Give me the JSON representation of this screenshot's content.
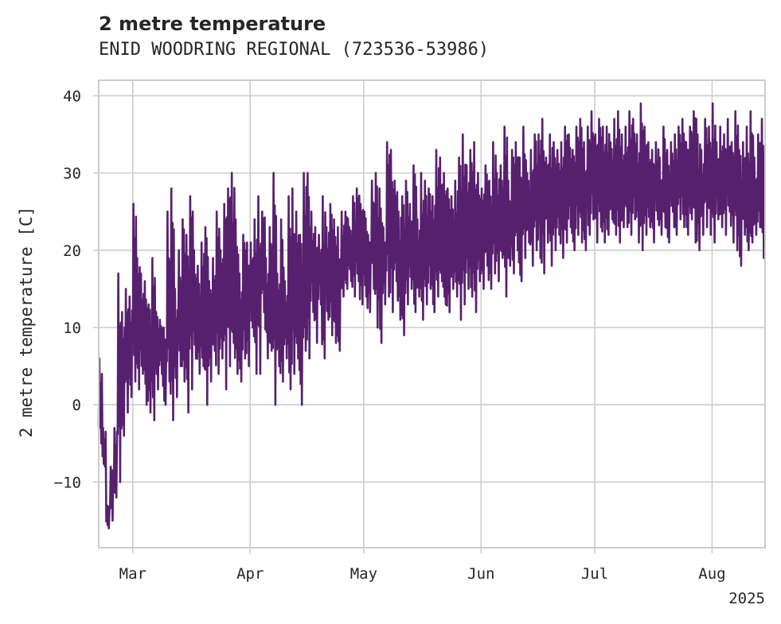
{
  "title": "2 metre temperature",
  "subtitle": "ENID WOODRING REGIONAL (723536-53986)",
  "colors": {
    "line": "#57206e",
    "grid": "#cccccc",
    "frame": "#cccccc",
    "text": "#262626"
  },
  "chart_data": {
    "type": "line",
    "title": "2 metre temperature",
    "subtitle": "ENID WOODRING REGIONAL (723536-53986)",
    "xlabel": "",
    "ylabel": "2 metre temperature [C]",
    "xlim": [
      "2025-02-20",
      "2025-08-15"
    ],
    "ylim": [
      -18.5,
      42
    ],
    "grid": true,
    "legend": "none",
    "x_ticks": [
      {
        "date": "2025-03-01",
        "label": "Mar"
      },
      {
        "date": "2025-04-01",
        "label": "Apr"
      },
      {
        "date": "2025-05-01",
        "label": "May"
      },
      {
        "date": "2025-06-01",
        "label": "Jun"
      },
      {
        "date": "2025-07-01",
        "label": "Jul"
      },
      {
        "date": "2025-08-01",
        "label": "Aug"
      }
    ],
    "x_offset_label": "2025",
    "y_ticks": [
      -10,
      0,
      10,
      20,
      30,
      40
    ],
    "series": [
      {
        "x": [
          "2025-02-20",
          "2025-02-21",
          "2025-02-22",
          "2025-02-23",
          "2025-02-24",
          "2025-02-25",
          "2025-02-26",
          "2025-02-27",
          "2025-02-28",
          "2025-03-01",
          "2025-03-02",
          "2025-03-03",
          "2025-03-04",
          "2025-03-05",
          "2025-03-06",
          "2025-03-07",
          "2025-03-08",
          "2025-03-09",
          "2025-03-10",
          "2025-03-11",
          "2025-03-12",
          "2025-03-13",
          "2025-03-14",
          "2025-03-15",
          "2025-03-16",
          "2025-03-17",
          "2025-03-18",
          "2025-03-19",
          "2025-03-20",
          "2025-03-21",
          "2025-03-22",
          "2025-03-23",
          "2025-03-24",
          "2025-03-25",
          "2025-03-26",
          "2025-03-27",
          "2025-03-28",
          "2025-03-29",
          "2025-03-30",
          "2025-03-31",
          "2025-04-01",
          "2025-04-02",
          "2025-04-03",
          "2025-04-04",
          "2025-04-05",
          "2025-04-06",
          "2025-04-07",
          "2025-04-08",
          "2025-04-09",
          "2025-04-10",
          "2025-04-11",
          "2025-04-12",
          "2025-04-13",
          "2025-04-14",
          "2025-04-15",
          "2025-04-16",
          "2025-04-17",
          "2025-04-18",
          "2025-04-19",
          "2025-04-20",
          "2025-04-21",
          "2025-04-22",
          "2025-04-23",
          "2025-04-24",
          "2025-04-25",
          "2025-04-26",
          "2025-04-27",
          "2025-04-28",
          "2025-04-29",
          "2025-04-30",
          "2025-05-01",
          "2025-05-02",
          "2025-05-03",
          "2025-05-04",
          "2025-05-05",
          "2025-05-06",
          "2025-05-07",
          "2025-05-08",
          "2025-05-09",
          "2025-05-10",
          "2025-05-11",
          "2025-05-12",
          "2025-05-13",
          "2025-05-14",
          "2025-05-15",
          "2025-05-16",
          "2025-05-17",
          "2025-05-18",
          "2025-05-19",
          "2025-05-20",
          "2025-05-21",
          "2025-05-22",
          "2025-05-23",
          "2025-05-24",
          "2025-05-25",
          "2025-05-26",
          "2025-05-27",
          "2025-05-28",
          "2025-05-29",
          "2025-05-30",
          "2025-05-31",
          "2025-06-01",
          "2025-06-02",
          "2025-06-03",
          "2025-06-04",
          "2025-06-05",
          "2025-06-06",
          "2025-06-07",
          "2025-06-08",
          "2025-06-09",
          "2025-06-10",
          "2025-06-11",
          "2025-06-12",
          "2025-06-13",
          "2025-06-14",
          "2025-06-15",
          "2025-06-16",
          "2025-06-17",
          "2025-06-18",
          "2025-06-19",
          "2025-06-20",
          "2025-06-21",
          "2025-06-22",
          "2025-06-23",
          "2025-06-24",
          "2025-06-25",
          "2025-06-26",
          "2025-06-27",
          "2025-06-28",
          "2025-06-29",
          "2025-06-30",
          "2025-07-01",
          "2025-07-02",
          "2025-07-03",
          "2025-07-04",
          "2025-07-05",
          "2025-07-06",
          "2025-07-07",
          "2025-07-08",
          "2025-07-09",
          "2025-07-10",
          "2025-07-11",
          "2025-07-12",
          "2025-07-13",
          "2025-07-14",
          "2025-07-15",
          "2025-07-16",
          "2025-07-17",
          "2025-07-18",
          "2025-07-19",
          "2025-07-20",
          "2025-07-21",
          "2025-07-22",
          "2025-07-23",
          "2025-07-24",
          "2025-07-25",
          "2025-07-26",
          "2025-07-27",
          "2025-07-28",
          "2025-07-29",
          "2025-07-30",
          "2025-07-31",
          "2025-08-01",
          "2025-08-02",
          "2025-08-03",
          "2025-08-04",
          "2025-08-05",
          "2025-08-06",
          "2025-08-07",
          "2025-08-08",
          "2025-08-09",
          "2025-08-10",
          "2025-08-11",
          "2025-08-12",
          "2025-08-13",
          "2025-08-14"
        ],
        "min": [
          -5,
          -8,
          -16,
          -15,
          -12,
          -10,
          -4,
          -1,
          1,
          3,
          2,
          4,
          0,
          -1,
          -2,
          2,
          4,
          0,
          3,
          -2,
          1,
          5,
          3,
          -1,
          2,
          6,
          4,
          5,
          0,
          3,
          7,
          4,
          6,
          2,
          5,
          8,
          4,
          3,
          6,
          5,
          10,
          4,
          4,
          12,
          6,
          7,
          0,
          5,
          3,
          6,
          2,
          4,
          6,
          0,
          7,
          6,
          12,
          8,
          13,
          6,
          11,
          9,
          8,
          7,
          14,
          15,
          16,
          14,
          16,
          13,
          14,
          12,
          15,
          10,
          8,
          13,
          14,
          12,
          16,
          11,
          9,
          13,
          15,
          12,
          14,
          11,
          13,
          15,
          12,
          14,
          16,
          13,
          12,
          15,
          14,
          11,
          13,
          15,
          14,
          12,
          16,
          15,
          18,
          15,
          17,
          16,
          19,
          14,
          18,
          17,
          20,
          16,
          19,
          21,
          18,
          20,
          19,
          17,
          21,
          18,
          20,
          22,
          19,
          21,
          23,
          20,
          22,
          21,
          20,
          22,
          24,
          21,
          23,
          21,
          22,
          24,
          22,
          21,
          23,
          23,
          22,
          24,
          21,
          20,
          22,
          23,
          21,
          24,
          22,
          23,
          21,
          25,
          22,
          24,
          23,
          22,
          24,
          21,
          20,
          22,
          23,
          22,
          21,
          24,
          23,
          22,
          25,
          21,
          20,
          18,
          22,
          20,
          21,
          22,
          23,
          19,
          20,
          21
        ],
        "max": [
          6,
          -3,
          -13,
          -8,
          -3,
          17,
          12,
          15,
          14,
          26,
          19,
          17,
          16,
          13,
          19,
          12,
          11,
          10,
          25,
          28,
          15,
          20,
          24,
          22,
          27,
          20,
          18,
          21,
          23,
          16,
          19,
          25,
          20,
          26,
          28,
          30,
          24,
          17,
          22,
          21,
          21,
          24,
          27,
          25,
          19,
          23,
          30,
          17,
          24,
          16,
          27,
          28,
          25,
          22,
          30,
          30,
          25,
          23,
          22,
          27,
          23,
          26,
          24,
          23,
          25,
          25,
          23,
          27,
          28,
          26,
          25,
          22,
          29,
          30,
          28,
          23,
          34,
          33,
          29,
          25,
          27,
          29,
          26,
          31,
          24,
          30,
          29,
          28,
          27,
          33,
          32,
          30,
          28,
          27,
          29,
          32,
          35,
          31,
          33,
          34,
          30,
          28,
          31,
          29,
          34,
          30,
          31,
          36,
          29,
          33,
          34,
          32,
          36,
          30,
          33,
          35,
          35,
          37,
          32,
          35,
          34,
          33,
          34,
          36,
          35,
          33,
          36,
          37,
          34,
          36,
          38,
          35,
          37,
          36,
          36,
          34,
          37,
          38,
          35,
          36,
          38,
          37,
          35,
          39,
          36,
          34,
          33,
          34,
          32,
          36,
          33,
          34,
          35,
          36,
          37,
          34,
          36,
          38,
          35,
          33,
          37,
          36,
          39,
          34,
          36,
          35,
          37,
          34,
          38,
          33,
          34,
          36,
          38,
          32,
          35,
          37,
          38,
          34,
          35,
          33
        ],
        "note": "hourly trace oscillates between daily min and max"
      }
    ]
  }
}
